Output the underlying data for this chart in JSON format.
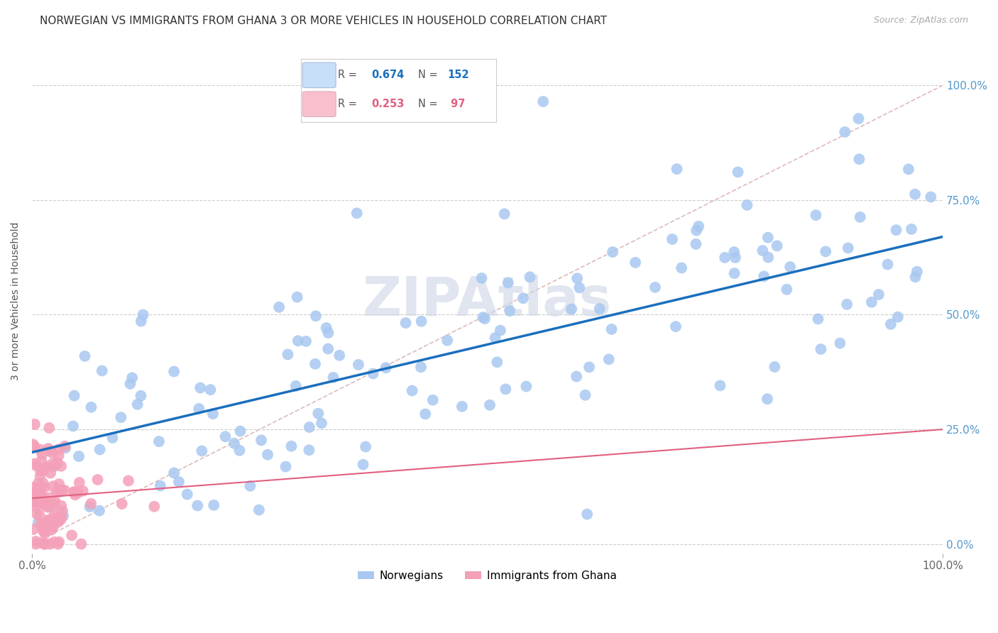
{
  "title": "NORWEGIAN VS IMMIGRANTS FROM GHANA 3 OR MORE VEHICLES IN HOUSEHOLD CORRELATION CHART",
  "source": "Source: ZipAtlas.com",
  "ylabel": "3 or more Vehicles in Household",
  "xlim": [
    0.0,
    1.0
  ],
  "ylim": [
    -0.02,
    1.08
  ],
  "ytick_labels": [
    "0.0%",
    "25.0%",
    "50.0%",
    "75.0%",
    "100.0%"
  ],
  "ytick_values": [
    0.0,
    0.25,
    0.5,
    0.75,
    1.0
  ],
  "xtick_labels": [
    "0.0%",
    "100.0%"
  ],
  "xtick_values": [
    0.0,
    1.0
  ],
  "norwegian_R": 0.674,
  "norwegian_N": 152,
  "ghana_R": 0.253,
  "ghana_N": 97,
  "norwegian_color": "#a8c8f0",
  "ghana_color": "#f4a0b8",
  "norwegian_line_color": "#1a6fbd",
  "ghana_line_color": "#e06080",
  "diagonal_color": "#ddbbbb",
  "background_color": "#ffffff",
  "title_fontsize": 11,
  "label_fontsize": 10,
  "tick_fontsize": 11,
  "watermark_color": "#ccd5e5",
  "nor_intercept": 0.2,
  "nor_slope": 0.47,
  "gha_intercept": 0.1,
  "gha_slope": 0.15
}
